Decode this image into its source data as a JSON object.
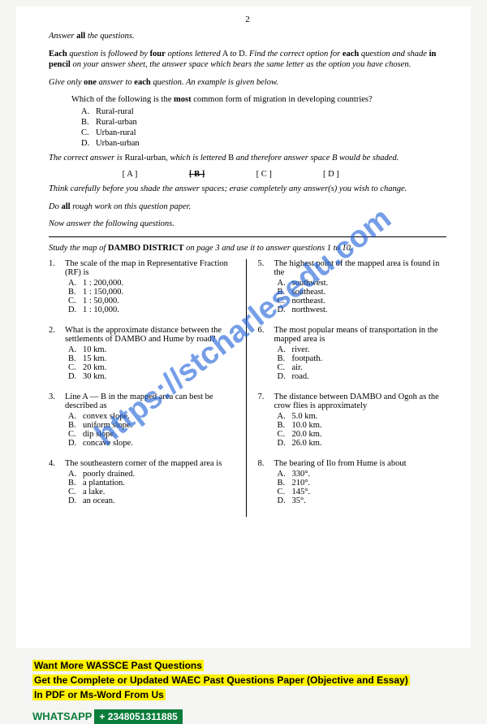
{
  "page_number": "2",
  "instructions": {
    "line1_pre": "Answer ",
    "line1_bold": "all",
    "line1_post": " the questions.",
    "line2": "Each question is followed by four options lettered A to D. Find the correct option for each question and shade in pencil on your answer sheet, the answer space which bears the same letter as the option you have chosen.",
    "line3": "Give only one answer to each question. An example is given below.",
    "example_q": "Which of the following is the most common form of migration in developing countries?",
    "example_opts": {
      "A": "Rural-rural",
      "B": "Rural-urban",
      "C": "Urban-rural",
      "D": "Urban-urban"
    },
    "correct_pre": "The correct answer is ",
    "correct_ans": "Rural-urban",
    "correct_mid": ", which is lettered ",
    "correct_letter": "B",
    "correct_post": " and therefore answer space B would be shaded.",
    "ans_a": "[ A ]",
    "ans_b": "[ B ]",
    "ans_c": "[ C ]",
    "ans_d": "[ D ]",
    "think": "Think carefully before you shade the answer spaces; erase completely any answer(s) you wish to change.",
    "rough_pre": "Do ",
    "rough_bold": "all",
    "rough_post": " rough work on this question paper.",
    "now": "Now answer the following questions."
  },
  "study_pre": "Study the map of ",
  "study_bold": "DAMBO DISTRICT",
  "study_post": " on page 3 and use it to answer questions 1 to 10.",
  "left": [
    {
      "n": "1.",
      "text": "The scale of the map in Representative Fraction (RF) is",
      "opts": {
        "A": "1 : 200,000.",
        "B": "1 : 150,000.",
        "C": "1 : 50,000.",
        "D": "1 : 10,000."
      }
    },
    {
      "n": "2.",
      "text": "What is the approximate distance between the settlements of DAMBO and Hume by road?",
      "opts": {
        "A": "10 km.",
        "B": "15 km.",
        "C": "20 km.",
        "D": "30 km."
      }
    },
    {
      "n": "3.",
      "text": "Line A — B in the mapped area can best be described as",
      "opts": {
        "A": "convex slope.",
        "B": "uniform slope.",
        "C": "dip slope.",
        "D": "concave slope."
      }
    },
    {
      "n": "4.",
      "text": "The southeastern corner of the mapped area is",
      "opts": {
        "A": "poorly drained.",
        "B": "a plantation.",
        "C": "a lake.",
        "D": "an ocean."
      }
    }
  ],
  "right": [
    {
      "n": "5.",
      "text": "The highest point of the mapped area is found in the",
      "opts": {
        "A": "southwest.",
        "B": "southeast.",
        "C": "northeast.",
        "D": "northwest."
      }
    },
    {
      "n": "6.",
      "text": "The most popular means of transportation in the mapped area is",
      "opts": {
        "A": "river.",
        "B": "footpath.",
        "C": "air.",
        "D": "road."
      }
    },
    {
      "n": "7.",
      "text": "The distance between DAMBO and Ogoh as the crow flies is approximately",
      "opts": {
        "A": "5.0 km.",
        "B": "10.0 km.",
        "C": "20.0 km.",
        "D": "26.0 km."
      }
    },
    {
      "n": "8.",
      "text": "The bearing of Ilo from Hume is about",
      "opts": {
        "A": "330°.",
        "B": "210°.",
        "C": "145°.",
        "D": "35°."
      }
    }
  ],
  "promo": {
    "l1": "Want More WASSCE Past Questions",
    "l2": "Get the Complete or Updated WAEC Past Questions Paper (Objective and Essay)",
    "l3": "In PDF or Ms-Word From Us"
  },
  "whatsapp_label": "WHATSAPP",
  "whatsapp_num": "+ 2348051311885",
  "watermark": "https://stcharlesedu.com"
}
